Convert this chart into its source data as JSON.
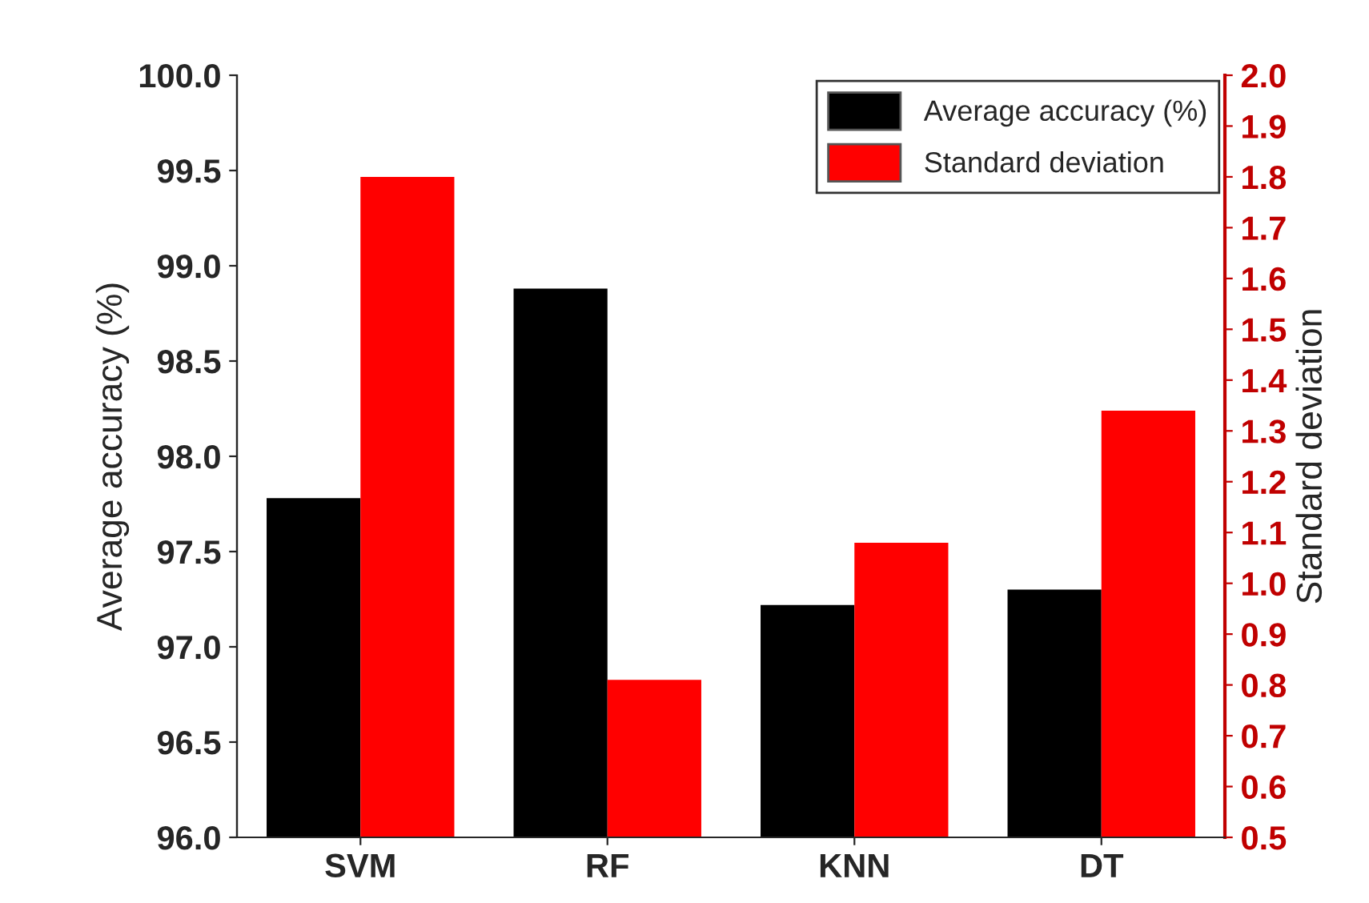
{
  "chart_data": {
    "type": "bar",
    "categories": [
      "SVM",
      "RF",
      "KNN",
      "DT"
    ],
    "ylabel": "Average accuracy (%)",
    "y2label": "Standard deviation",
    "series": [
      {
        "name": "Average accuracy (%)",
        "color": "#000000",
        "values": [
          97.78,
          98.88,
          97.22,
          97.3
        ]
      },
      {
        "name": "Standard deviation",
        "color": "#ff0000",
        "values": [
          1.8,
          0.81,
          1.08,
          1.34
        ],
        "axis": "y2"
      }
    ],
    "ylim": [
      96.0,
      100.0
    ],
    "yticks": [
      {
        "value": 96.0,
        "label": "96.0"
      },
      {
        "value": 96.5,
        "label": "96.5"
      },
      {
        "value": 97.0,
        "label": "97.0"
      },
      {
        "value": 97.5,
        "label": "97.5"
      },
      {
        "value": 98.0,
        "label": "98.0"
      },
      {
        "value": 98.5,
        "label": "98.5"
      },
      {
        "value": 99.0,
        "label": "99.0"
      },
      {
        "value": 99.5,
        "label": "99.5"
      },
      {
        "value": 100.0,
        "label": "100.0"
      }
    ],
    "y2lim": [
      0.5,
      2.0
    ],
    "y2ticks": [
      0.5,
      0.6,
      0.7,
      0.8,
      0.9,
      {
        "value": 1.0,
        "label": "1.0"
      },
      1.1,
      1.2,
      1.3,
      1.4,
      1.5,
      1.6,
      1.7,
      1.8,
      1.9,
      {
        "value": 2.0,
        "label": "2.0"
      }
    ],
    "legend": "top right",
    "grid": false
  }
}
